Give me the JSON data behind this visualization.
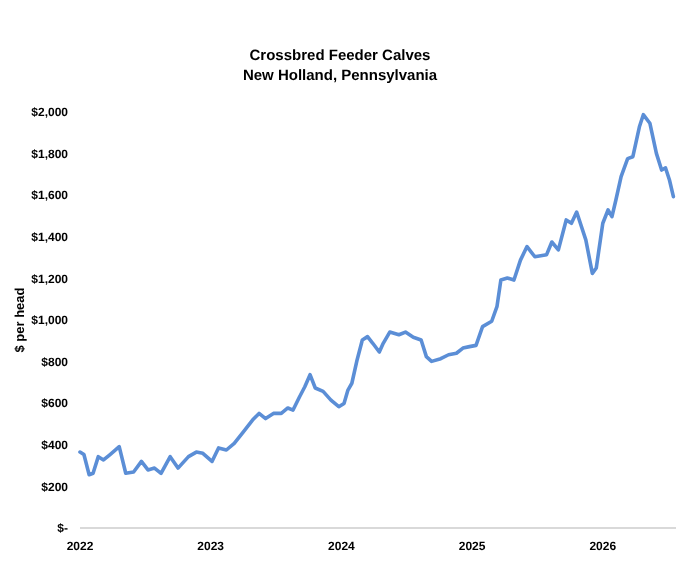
{
  "chart_data": {
    "type": "line",
    "title": "Crossbred Feeder Calves\nNew Holland, Pennsylvania",
    "ylabel": "$ per head",
    "xlim": [
      2022,
      2026.56
    ],
    "xticks": [
      2022,
      2023,
      2024,
      2025,
      2026
    ],
    "ylim": [
      0,
      2000
    ],
    "yticks": [
      {
        "value": 0,
        "label": "$-"
      },
      {
        "value": 200,
        "label": "$200"
      },
      {
        "value": 400,
        "label": "$400"
      },
      {
        "value": 600,
        "label": "$600"
      },
      {
        "value": 800,
        "label": "$800"
      },
      {
        "value": 1000,
        "label": "$1,000"
      },
      {
        "value": 1200,
        "label": "$1,200"
      },
      {
        "value": 1400,
        "label": "$1,400"
      },
      {
        "value": 1600,
        "label": "$1,600"
      },
      {
        "value": 1800,
        "label": "$1,800"
      },
      {
        "value": 2000,
        "label": "$2,000"
      }
    ],
    "grid": false,
    "marker": "none",
    "line_style": "solid",
    "series": [
      {
        "color": "#5b8ed6",
        "x": [
          2022.0,
          2022.03,
          2022.07,
          2022.1,
          2022.14,
          2022.18,
          2022.23,
          2022.3,
          2022.35,
          2022.41,
          2022.47,
          2022.52,
          2022.57,
          2022.62,
          2022.69,
          2022.75,
          2022.83,
          2022.89,
          2022.94,
          2023.01,
          2023.06,
          2023.12,
          2023.18,
          2023.25,
          2023.32,
          2023.37,
          2023.42,
          2023.48,
          2023.54,
          2023.59,
          2023.63,
          2023.68,
          2023.72,
          2023.76,
          2023.8,
          2023.86,
          2023.92,
          2023.98,
          2024.02,
          2024.05,
          2024.08,
          2024.12,
          2024.16,
          2024.2,
          2024.24,
          2024.29,
          2024.32,
          2024.37,
          2024.44,
          2024.49,
          2024.55,
          2024.61,
          2024.65,
          2024.69,
          2024.76,
          2024.82,
          2024.88,
          2024.93,
          2024.98,
          2025.03,
          2025.08,
          2025.15,
          2025.19,
          2025.22,
          2025.27,
          2025.32,
          2025.37,
          2025.42,
          2025.48,
          2025.57,
          2025.61,
          2025.66,
          2025.72,
          2025.76,
          2025.8,
          2025.87,
          2025.92,
          2025.95,
          2026.0,
          2026.04,
          2026.07,
          2026.1,
          2026.14,
          2026.19,
          2026.23,
          2026.28,
          2026.31,
          2026.36,
          2026.41,
          2026.45,
          2026.48,
          2026.51,
          2026.54
        ],
        "values": [
          365,
          353,
          256,
          263,
          343,
          327,
          353,
          391,
          263,
          269,
          320,
          279,
          288,
          263,
          343,
          288,
          343,
          365,
          359,
          320,
          385,
          375,
          407,
          462,
          519,
          551,
          526,
          551,
          551,
          577,
          567,
          631,
          679,
          737,
          673,
          657,
          615,
          583,
          599,
          663,
          696,
          808,
          904,
          920,
          888,
          846,
          888,
          942,
          929,
          942,
          917,
          904,
          824,
          801,
          814,
          833,
          840,
          865,
          872,
          878,
          968,
          994,
          1064,
          1192,
          1202,
          1192,
          1288,
          1353,
          1304,
          1314,
          1375,
          1337,
          1481,
          1465,
          1519,
          1385,
          1224,
          1250,
          1465,
          1529,
          1497,
          1577,
          1689,
          1776,
          1785,
          1929,
          1987,
          1946,
          1801,
          1721,
          1731,
          1673,
          1593
        ]
      }
    ]
  }
}
